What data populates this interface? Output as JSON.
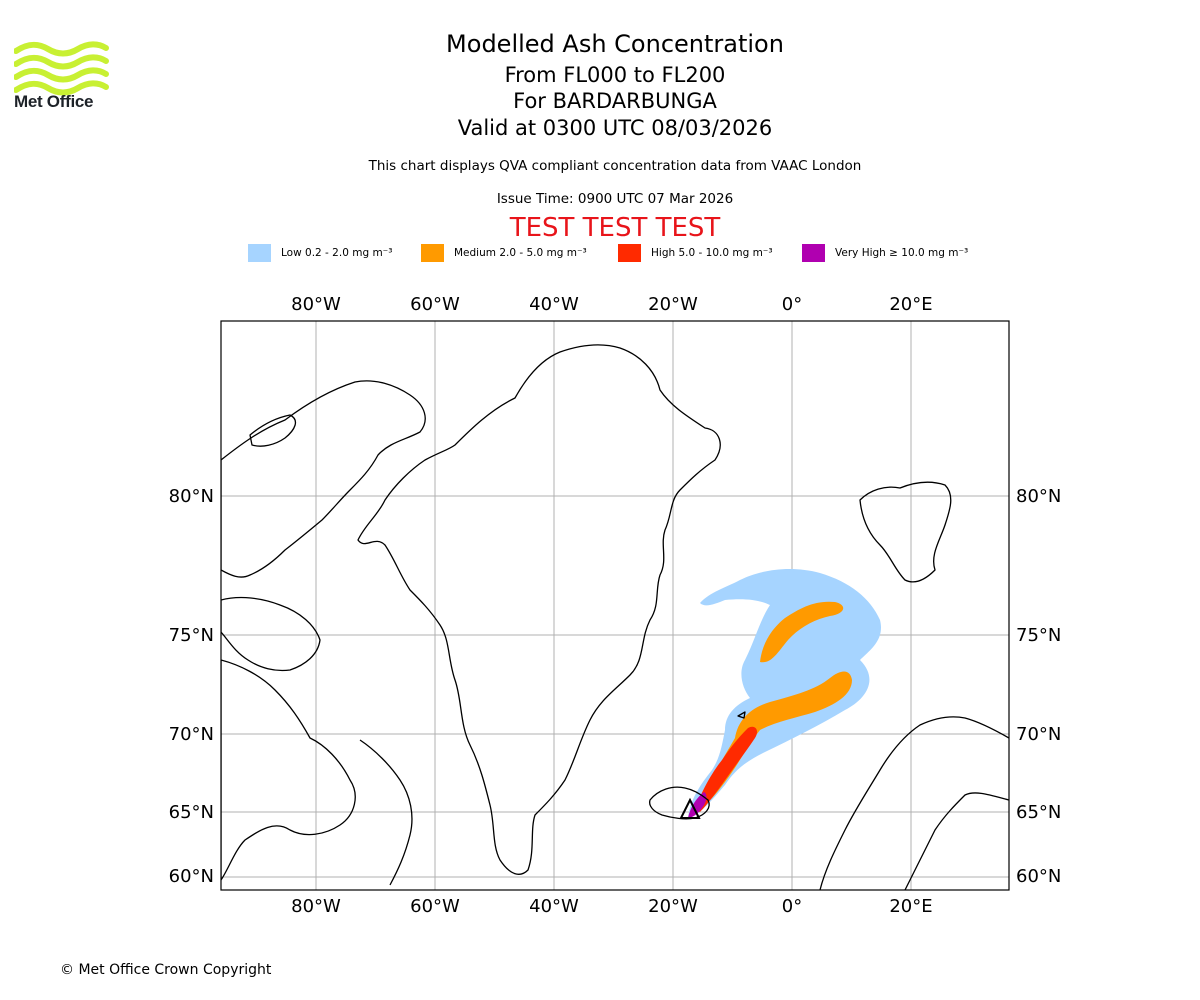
{
  "logo": {
    "text": "Met Office",
    "name": "met-office-logo"
  },
  "header": {
    "title": "Modelled Ash Concentration",
    "flight_levels": "From FL000 to FL200",
    "volcano": "For BARDARBUNGA",
    "valid_time": "Valid at 0300 UTC 08/03/2026",
    "note": "This chart displays QVA compliant concentration data from VAAC London",
    "issue_time": "Issue Time: 0900 UTC 07 Mar 2026",
    "test_banner": "TEST TEST TEST"
  },
  "legend": [
    {
      "label": "Low 0.2 - 2.0 mg m⁻³",
      "color": "#a6d4ff"
    },
    {
      "label": "Medium 2.0 - 5.0 mg m⁻³",
      "color": "#ff9a00"
    },
    {
      "label": "High 5.0 - 10.0 mg m⁻³",
      "color": "#ff2a00"
    },
    {
      "label": "Very High  ≥  10.0 mg m⁻³",
      "color": "#b000b0"
    }
  ],
  "axes": {
    "longitude_labels": [
      "80°W",
      "60°W",
      "40°W",
      "20°W",
      "0°",
      "20°E"
    ],
    "latitude_labels": [
      "80°N",
      "75°N",
      "70°N",
      "65°N",
      "60°N"
    ]
  },
  "footer": {
    "copyright": "© Met Office Crown Copyright"
  }
}
